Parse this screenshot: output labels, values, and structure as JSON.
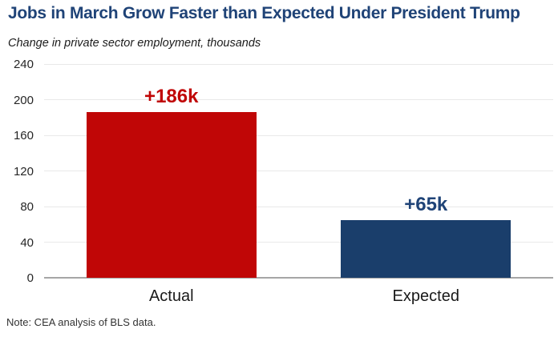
{
  "header": {
    "title": "Jobs in March Grow Faster than Expected Under President Trump",
    "subtitle": "Change in private sector employment, thousands",
    "title_color": "#1f4377"
  },
  "footer": {
    "note": "Note: CEA analysis of BLS data."
  },
  "chart_data": {
    "type": "bar",
    "title": "Jobs in March Grow Faster than Expected Under President Trump",
    "subtitle": "Change in private sector employment, thousands",
    "categories": [
      "Actual",
      "Expected"
    ],
    "values": [
      186,
      65
    ],
    "value_labels": [
      "+186k",
      "+65k"
    ],
    "bar_colors": [
      "#c00606",
      "#1a3e6b"
    ],
    "value_label_colors": [
      "#c00606",
      "#1f4377"
    ],
    "yticks": [
      0,
      40,
      80,
      120,
      160,
      200,
      240
    ],
    "ylim": [
      0,
      240
    ],
    "grid": true,
    "legend": "none",
    "xlabel": "",
    "ylabel": "",
    "note": "Note: CEA analysis of BLS data."
  }
}
